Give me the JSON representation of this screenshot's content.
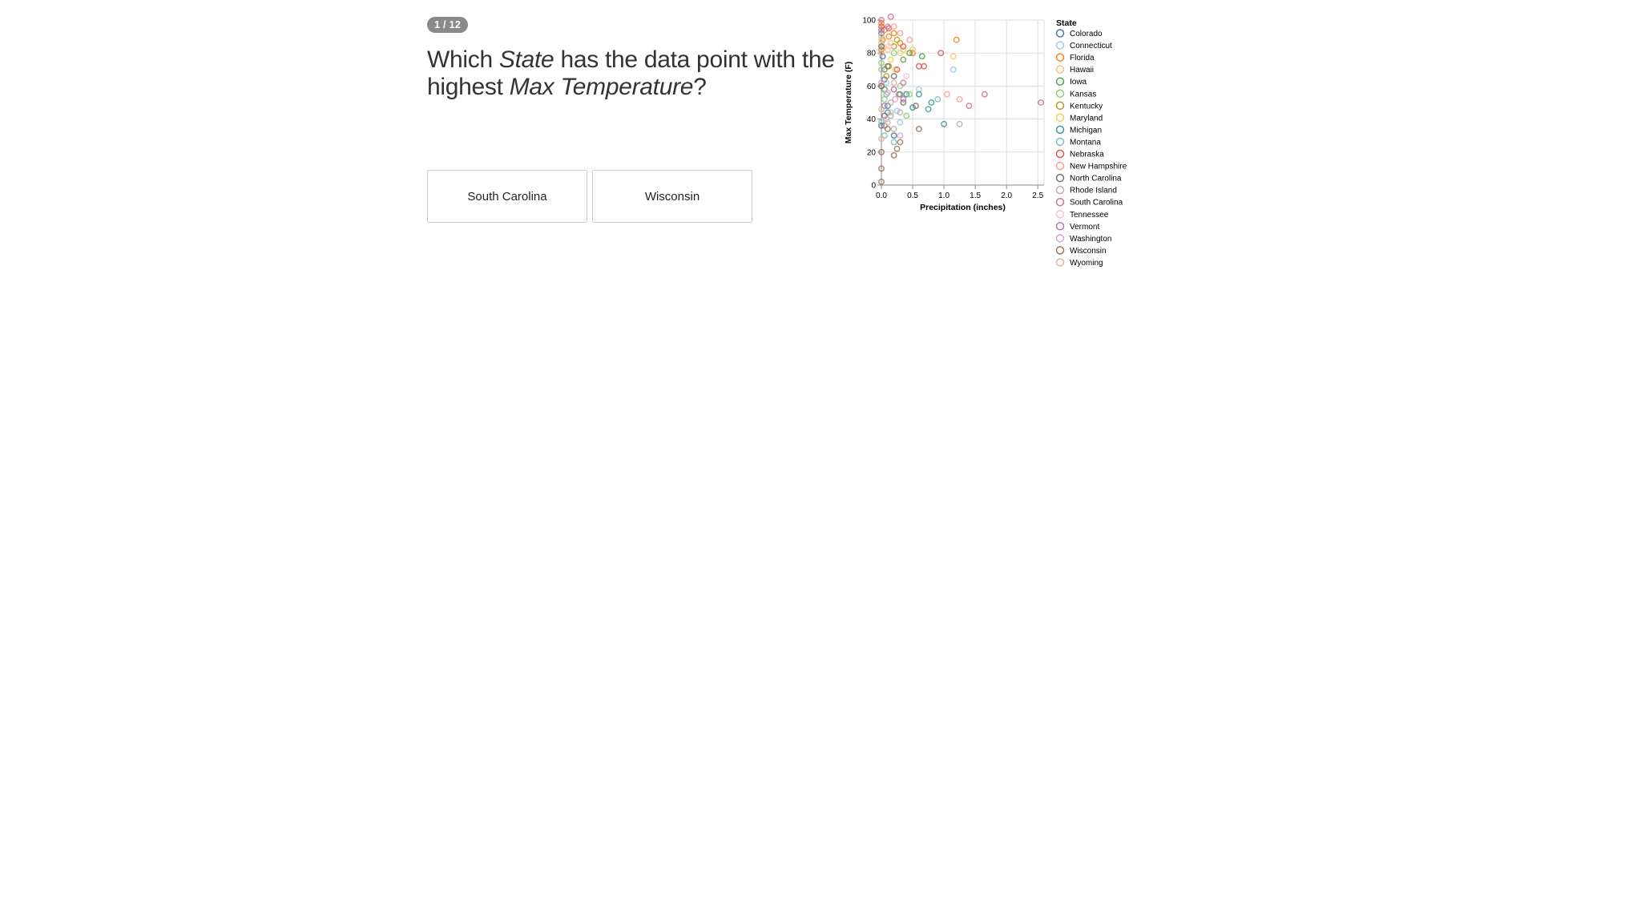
{
  "quiz": {
    "progress": "1 / 12",
    "question_parts": [
      "Which ",
      "State",
      " has the data point with the highest ",
      "Max Temperature",
      "?"
    ],
    "answers": [
      "South Carolina",
      "Wisconsin"
    ]
  },
  "chart_data": {
    "type": "scatter",
    "xlabel": "Precipitation (inches)",
    "ylabel": "Max Temperature (F)",
    "xlim": [
      0,
      2.6
    ],
    "ylim": [
      0,
      100
    ],
    "xticks": [
      "0.0",
      "0.5",
      "1.0",
      "1.5",
      "2.0",
      "2.5"
    ],
    "yticks": [
      "0",
      "20",
      "40",
      "60",
      "80",
      "100"
    ],
    "grid": true,
    "marker": "open-circle",
    "legend": {
      "title": "State",
      "placement": "right"
    },
    "series": [
      {
        "name": "Colorado",
        "color": "#4c78a8",
        "points": [
          [
            0.0,
            92
          ],
          [
            0.02,
            78
          ],
          [
            0.05,
            64
          ],
          [
            0.1,
            48
          ],
          [
            0.2,
            30
          ],
          [
            0.4,
            55
          ],
          [
            0.0,
            36
          ]
        ]
      },
      {
        "name": "Connecticut",
        "color": "#9ecae9",
        "points": [
          [
            0.0,
            86
          ],
          [
            0.08,
            62
          ],
          [
            0.25,
            45
          ],
          [
            0.6,
            58
          ],
          [
            1.15,
            70
          ],
          [
            0.3,
            38
          ]
        ]
      },
      {
        "name": "Florida",
        "color": "#f58518",
        "points": [
          [
            0.0,
            98
          ],
          [
            0.05,
            94
          ],
          [
            0.12,
            90
          ],
          [
            0.3,
            86
          ],
          [
            0.5,
            80
          ],
          [
            1.2,
            88
          ],
          [
            0.2,
            92
          ],
          [
            0.02,
            88
          ]
        ]
      },
      {
        "name": "Hawaii",
        "color": "#ffbf79",
        "points": [
          [
            0.02,
            84
          ],
          [
            0.1,
            82
          ],
          [
            0.3,
            80
          ],
          [
            0.5,
            82
          ],
          [
            1.15,
            78
          ],
          [
            0.15,
            86
          ]
        ]
      },
      {
        "name": "Iowa",
        "color": "#54a24b",
        "points": [
          [
            0.0,
            90
          ],
          [
            0.05,
            70
          ],
          [
            0.3,
            55
          ],
          [
            0.65,
            78
          ],
          [
            0.45,
            80
          ],
          [
            0.35,
            76
          ],
          [
            0.05,
            58
          ]
        ]
      },
      {
        "name": "Kansas",
        "color": "#88d27a",
        "points": [
          [
            0.0,
            74
          ],
          [
            0.05,
            52
          ],
          [
            0.4,
            42
          ],
          [
            0.45,
            55
          ],
          [
            0.2,
            80
          ],
          [
            0.3,
            60
          ]
        ]
      },
      {
        "name": "Kentucky",
        "color": "#b79a20",
        "points": [
          [
            0.0,
            82
          ],
          [
            0.08,
            66
          ],
          [
            0.2,
            84
          ],
          [
            0.25,
            88
          ],
          [
            0.12,
            72
          ]
        ]
      },
      {
        "name": "Maryland",
        "color": "#f2cf5b",
        "points": [
          [
            0.0,
            88
          ],
          [
            0.15,
            76
          ],
          [
            0.35,
            82
          ],
          [
            0.22,
            70
          ]
        ]
      },
      {
        "name": "Michigan",
        "color": "#439894",
        "points": [
          [
            0.0,
            60
          ],
          [
            0.1,
            44
          ],
          [
            0.75,
            46
          ],
          [
            0.8,
            50
          ],
          [
            1.0,
            37
          ],
          [
            0.6,
            55
          ],
          [
            0.5,
            47
          ]
        ]
      },
      {
        "name": "Montana",
        "color": "#83bcb6",
        "points": [
          [
            0.0,
            38
          ],
          [
            0.05,
            30
          ],
          [
            0.15,
            42
          ],
          [
            0.9,
            52
          ],
          [
            0.2,
            26
          ],
          [
            0.08,
            55
          ]
        ]
      },
      {
        "name": "Nebraska",
        "color": "#e45756",
        "points": [
          [
            0.0,
            96
          ],
          [
            0.12,
            95
          ],
          [
            0.35,
            84
          ],
          [
            0.6,
            72
          ],
          [
            0.95,
            80
          ],
          [
            0.68,
            72
          ],
          [
            0.25,
            70
          ]
        ]
      },
      {
        "name": "New Hampshire",
        "color": "#ff9d98",
        "points": [
          [
            0.0,
            80
          ],
          [
            0.3,
            92
          ],
          [
            0.45,
            88
          ],
          [
            1.05,
            55
          ],
          [
            1.25,
            52
          ],
          [
            0.2,
            96
          ]
        ]
      },
      {
        "name": "North Carolina",
        "color": "#79706e",
        "points": [
          [
            0.0,
            84
          ],
          [
            0.1,
            72
          ],
          [
            0.2,
            66
          ],
          [
            0.35,
            50
          ],
          [
            0.55,
            48
          ],
          [
            0.05,
            42
          ]
        ]
      },
      {
        "name": "Rhode Island",
        "color": "#bab0ac",
        "points": [
          [
            0.0,
            70
          ],
          [
            0.2,
            34
          ],
          [
            1.25,
            37
          ],
          [
            0.15,
            50
          ],
          [
            0.3,
            44
          ]
        ]
      },
      {
        "name": "South Carolina",
        "color": "#d67195",
        "points": [
          [
            0.0,
            100
          ],
          [
            0.15,
            102
          ],
          [
            0.35,
            62
          ],
          [
            1.65,
            55
          ],
          [
            2.55,
            50
          ],
          [
            1.4,
            48
          ],
          [
            0.1,
            96
          ]
        ]
      },
      {
        "name": "Tennessee",
        "color": "#fcbfd2",
        "points": [
          [
            0.0,
            90
          ],
          [
            0.12,
            84
          ],
          [
            0.4,
            66
          ],
          [
            0.2,
            58
          ]
        ]
      },
      {
        "name": "Vermont",
        "color": "#b279a2",
        "points": [
          [
            0.0,
            94
          ],
          [
            0.2,
            58
          ],
          [
            0.28,
            55
          ],
          [
            0.05,
            48
          ],
          [
            0.35,
            52
          ]
        ]
      },
      {
        "name": "Washington",
        "color": "#d6a5c9",
        "points": [
          [
            0.0,
            62
          ],
          [
            0.1,
            56
          ],
          [
            0.22,
            52
          ],
          [
            0.08,
            40
          ],
          [
            0.3,
            30
          ]
        ]
      },
      {
        "name": "Wisconsin",
        "color": "#9e765f",
        "points": [
          [
            0.0,
            20
          ],
          [
            0.0,
            10
          ],
          [
            0.0,
            2
          ],
          [
            0.1,
            34
          ],
          [
            0.2,
            18
          ],
          [
            0.3,
            26
          ],
          [
            0.6,
            34
          ],
          [
            0.0,
            60
          ],
          [
            0.05,
            36
          ],
          [
            0.25,
            22
          ]
        ]
      },
      {
        "name": "Wyoming",
        "color": "#d8b5a5",
        "points": [
          [
            0.0,
            46
          ],
          [
            0.1,
            38
          ],
          [
            0.2,
            62
          ],
          [
            0.0,
            28
          ],
          [
            0.15,
            44
          ]
        ]
      }
    ]
  }
}
